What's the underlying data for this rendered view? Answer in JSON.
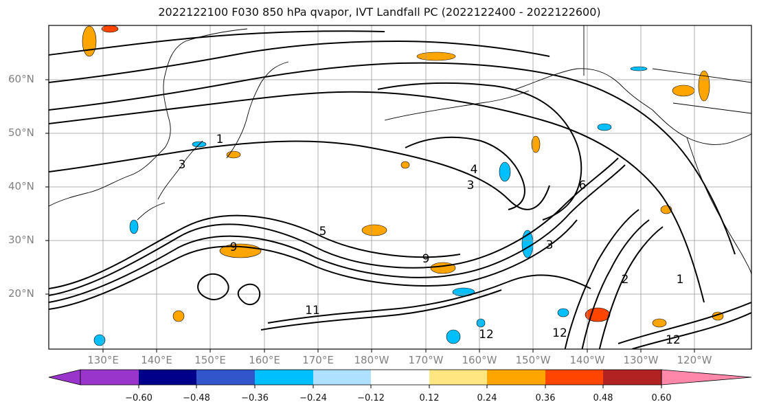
{
  "title": "2022122100 F030 850 hPa qvapor, IVT Landfall PC (2022122400 - 2022122600)",
  "latitude_labels": [
    "60°N",
    "50°N",
    "40°N",
    "30°N",
    "20°N"
  ],
  "longitude_labels": [
    "130°E",
    "140°E",
    "150°E",
    "160°E",
    "170°E",
    "180°W",
    "170°W",
    "160°W",
    "150°W",
    "140°W",
    "130°W",
    "120°W"
  ],
  "contour_labels": [
    "1",
    "3",
    "5",
    "9",
    "3",
    "6",
    "2",
    "12",
    "12",
    "1",
    "4",
    "3",
    "11",
    "9",
    "12"
  ],
  "colorbar": {
    "ticks": [
      "−0.60",
      "−0.48",
      "−0.36",
      "−0.24",
      "−0.12",
      "0.12",
      "0.24",
      "0.36",
      "0.48",
      "0.60"
    ],
    "colors": [
      "#9a35cc",
      "#00008a",
      "#3355cc",
      "#00bfff",
      "#b0e0ff",
      "#ffffff",
      "#ffe680",
      "#ffa500",
      "#ff4500",
      "#b22222",
      "#ff88aa"
    ]
  }
}
